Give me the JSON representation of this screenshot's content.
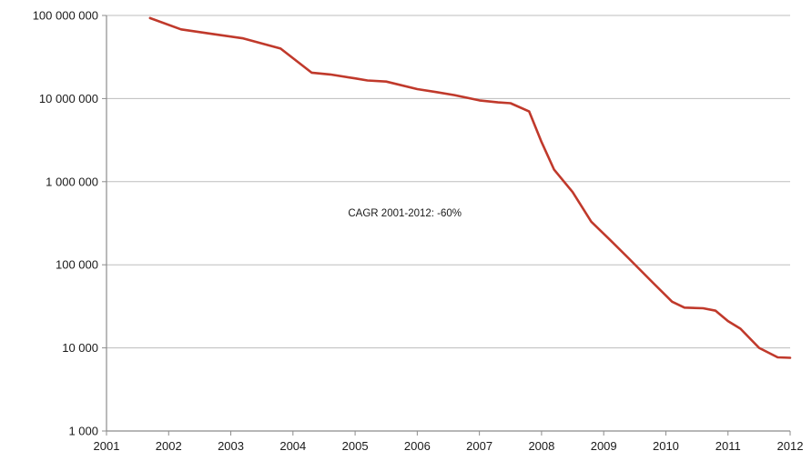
{
  "chart_data": {
    "type": "line",
    "title": "",
    "xlabel": "",
    "ylabel": "",
    "x_scale": "linear",
    "y_scale": "log",
    "xlim": [
      2001,
      2012
    ],
    "ylim": [
      1000,
      100000000
    ],
    "x_ticks": [
      2001,
      2002,
      2003,
      2004,
      2005,
      2006,
      2007,
      2008,
      2009,
      2010,
      2011,
      2012
    ],
    "x_tick_labels": [
      "2001",
      "2002",
      "2003",
      "2004",
      "2005",
      "2006",
      "2007",
      "2008",
      "2009",
      "2010",
      "2011",
      "2012"
    ],
    "y_ticks": [
      1000,
      10000,
      100000,
      1000000,
      10000000,
      100000000
    ],
    "y_tick_labels": [
      "1 000",
      "10 000",
      "100 000",
      "1 000 000",
      "10 000 000",
      "100 000 000"
    ],
    "grid": {
      "horizontal": true,
      "vertical": false
    },
    "legend": "none",
    "annotation": {
      "text": "CAGR 2001-2012:  -60%",
      "x": 2005.8,
      "y": 420000
    },
    "series": [
      {
        "color": "#c0392b",
        "x": [
          2001.7,
          2002.2,
          2002.7,
          2003.2,
          2003.8,
          2004.3,
          2004.6,
          2005.0,
          2005.2,
          2005.5,
          2006.0,
          2006.3,
          2006.6,
          2007.0,
          2007.3,
          2007.5,
          2007.8,
          2008.0,
          2008.2,
          2008.5,
          2008.8,
          2009.1,
          2009.4,
          2009.8,
          2010.1,
          2010.3,
          2010.6,
          2010.8,
          2011.0,
          2011.2,
          2011.5,
          2011.8,
          2012.0
        ],
        "y": [
          93000000,
          68000000,
          60000000,
          53000000,
          40000000,
          20500000,
          19500000,
          17500000,
          16500000,
          16000000,
          13000000,
          12000000,
          11000000,
          9500000,
          9000000,
          8800000,
          7000000,
          3000000,
          1400000,
          750000,
          330000,
          200000,
          120000,
          60000,
          36000,
          30500,
          30000,
          28000,
          21000,
          17000,
          10000,
          7700,
          7600
        ]
      }
    ]
  }
}
